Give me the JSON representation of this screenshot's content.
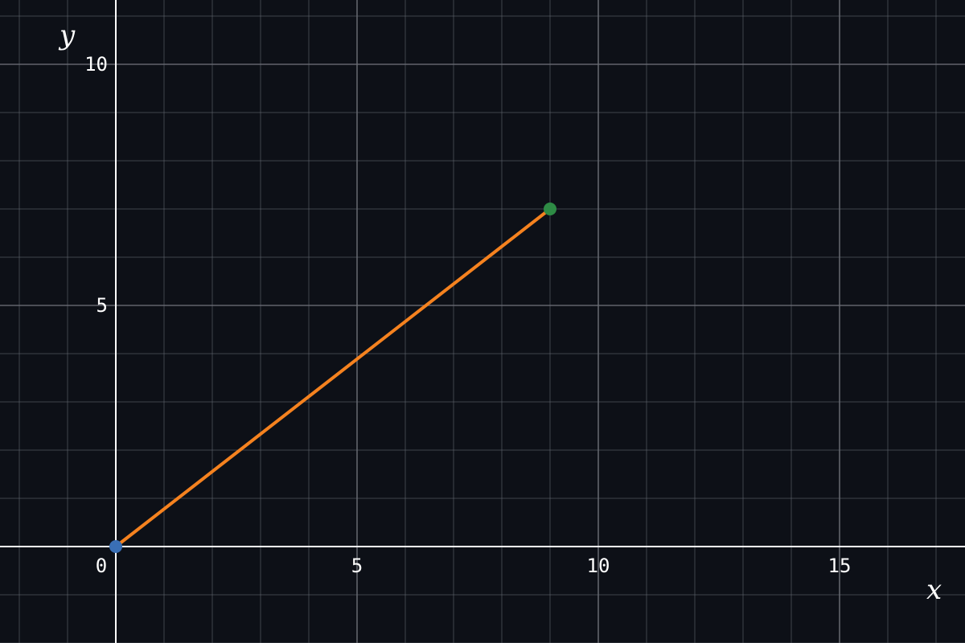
{
  "chart_data": {
    "type": "line",
    "xlabel": "x",
    "ylabel": "y",
    "xlim": [
      -2.4,
      17.6
    ],
    "ylim": [
      -2,
      11.3333
    ],
    "grid": true,
    "minor_grid_step": 1,
    "major_grid_step": 5,
    "x_ticks": [
      {
        "value": 0,
        "label": "0"
      },
      {
        "value": 5,
        "label": "5"
      },
      {
        "value": 10,
        "label": "10"
      },
      {
        "value": 15,
        "label": "15"
      }
    ],
    "y_ticks": [
      {
        "value": 5,
        "label": "5"
      },
      {
        "value": 10,
        "label": "10"
      }
    ],
    "series": [
      {
        "points": [
          {
            "x": 0,
            "y": 0
          },
          {
            "x": 9,
            "y": 7
          }
        ]
      }
    ],
    "markers": [
      {
        "x": 0,
        "y": 0,
        "color": "#3a6fb5"
      },
      {
        "x": 9,
        "y": 7,
        "color": "#2e8b45"
      }
    ],
    "colors": {
      "background": "#0d1017",
      "grid": "#6a6e76",
      "axis": "#ffffff",
      "text": "#ffffff",
      "line": "#f5821f"
    }
  }
}
